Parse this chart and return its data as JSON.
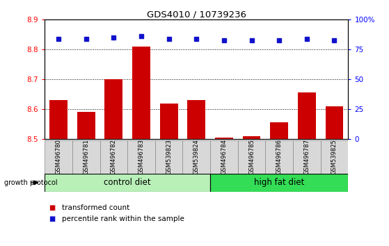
{
  "title": "GDS4010 / 10739236",
  "samples": [
    "GSM496780",
    "GSM496781",
    "GSM496782",
    "GSM496783",
    "GSM539823",
    "GSM539824",
    "GSM496784",
    "GSM496785",
    "GSM496786",
    "GSM496787",
    "GSM539825"
  ],
  "red_values": [
    8.63,
    8.59,
    8.7,
    8.81,
    8.62,
    8.63,
    8.505,
    8.51,
    8.555,
    8.655,
    8.61
  ],
  "blue_values": [
    84,
    84,
    85,
    86,
    84,
    84,
    83,
    83,
    83,
    84,
    83
  ],
  "ylim_left": [
    8.5,
    8.9
  ],
  "ylim_right": [
    0,
    100
  ],
  "yticks_left": [
    8.5,
    8.6,
    8.7,
    8.8,
    8.9
  ],
  "yticks_right": [
    0,
    25,
    50,
    75,
    100
  ],
  "ytick_labels_right": [
    "0",
    "25",
    "50",
    "75",
    "100%"
  ],
  "control_diet_indices": [
    0,
    1,
    2,
    3,
    4,
    5
  ],
  "high_fat_diet_indices": [
    6,
    7,
    8,
    9,
    10
  ],
  "control_label": "control diet",
  "high_fat_label": "high fat diet",
  "growth_protocol_label": "growth protocol",
  "legend_red_label": "transformed count",
  "legend_blue_label": "percentile rank within the sample",
  "bar_color": "#cc0000",
  "dot_color": "#1111cc",
  "control_color": "#b8f0b8",
  "high_fat_color": "#33dd55",
  "sample_box_color": "#d8d8d8",
  "bar_base": 8.5,
  "bar_width": 0.65,
  "grid_lines": [
    8.6,
    8.7,
    8.8
  ],
  "n_samples": 11
}
